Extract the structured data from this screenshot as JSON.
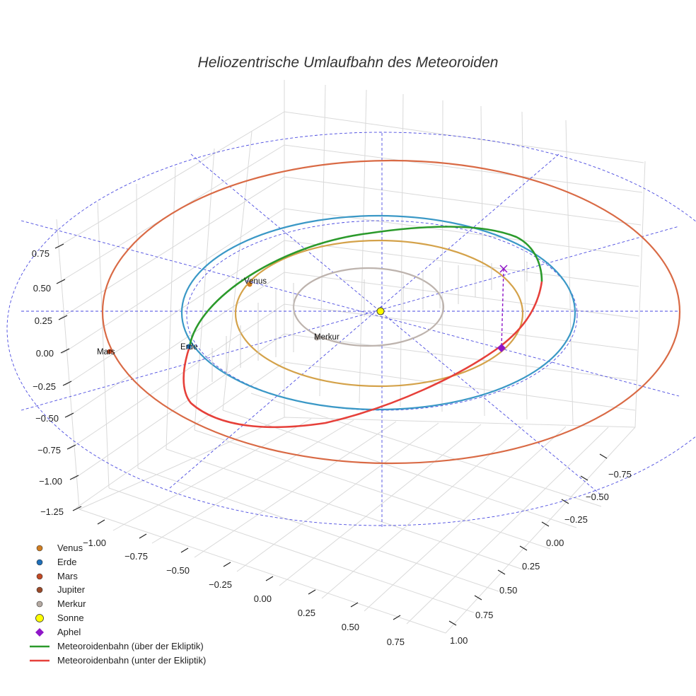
{
  "chart_data": {
    "type": "scatter3d",
    "title": "Heliozentrische Umlaufbahn des Meteoroiden",
    "axes": {
      "x_ticks": [
        "−1.00",
        "−0.75",
        "−0.50",
        "−0.25",
        "0.00",
        "0.25",
        "0.50",
        "0.75"
      ],
      "y_ticks": [
        "−0.75",
        "−0.50",
        "−0.25",
        "0.00",
        "0.25",
        "0.50",
        "0.75",
        "1.00"
      ],
      "z_ticks": [
        "0.75",
        "0.50",
        "0.25",
        "0.00",
        "−0.25",
        "−0.50",
        "−0.75",
        "−1.00",
        "−1.25"
      ],
      "xlim": [
        -1.1,
        0.85
      ],
      "ylim": [
        -0.9,
        1.1
      ],
      "zlim": [
        -1.3,
        0.85
      ],
      "grid": true
    },
    "orbits": [
      {
        "name": "Merkur",
        "radius_au": 0.39,
        "color": "#bdb3ad"
      },
      {
        "name": "Venus",
        "radius_au": 0.72,
        "color": "#d4a24a"
      },
      {
        "name": "Erde",
        "radius_au": 1.0,
        "color": "#3a98c6"
      },
      {
        "name": "Mars",
        "radius_au": 1.52,
        "color": "#d96a45"
      }
    ],
    "planets": [
      {
        "name": "Venus",
        "label": "Venus",
        "color": "#d07e22"
      },
      {
        "name": "Erde",
        "label": "Erde",
        "color": "#1f6fb8"
      },
      {
        "name": "Mars",
        "label": "Mars",
        "color": "#c24a25"
      },
      {
        "name": "Merkur",
        "label": "Merkur",
        "color": "#b5aaa2"
      }
    ],
    "sun": {
      "name": "Sonne",
      "color": "#ffff00"
    },
    "meteoroid_orbit": {
      "above_ecliptic": {
        "name": "Meteoroidenbahn (über der Ekliptik)",
        "color": "#2b9a2b"
      },
      "below_ecliptic": {
        "name": "Meteoroidenbahn (unter der Ekliptik)",
        "color": "#e6403a"
      }
    },
    "aphel": {
      "name": "Aphel",
      "color": "#8f17c8"
    },
    "legend": [
      {
        "label": "Venus",
        "marker": "circle",
        "color": "#d07e22"
      },
      {
        "label": "Erde",
        "marker": "circle",
        "color": "#1f6fb8"
      },
      {
        "label": "Mars",
        "marker": "circle",
        "color": "#c24a25"
      },
      {
        "label": "Jupiter",
        "marker": "circle",
        "color": "#9a4a2a"
      },
      {
        "label": "Merkur",
        "marker": "circle",
        "color": "#b5aaa2"
      },
      {
        "label": "Sonne",
        "marker": "circle-big",
        "color": "#ffff00"
      },
      {
        "label": "Aphel",
        "marker": "diamond",
        "color": "#8f17c8"
      },
      {
        "label": "Meteoroidenbahn (über der Ekliptik)",
        "marker": "line",
        "color": "#2b9a2b"
      },
      {
        "label": "Meteoroidenbahn (unter der Ekliptik)",
        "marker": "line",
        "color": "#e6403a"
      }
    ],
    "legend_position": "bottom-left"
  }
}
